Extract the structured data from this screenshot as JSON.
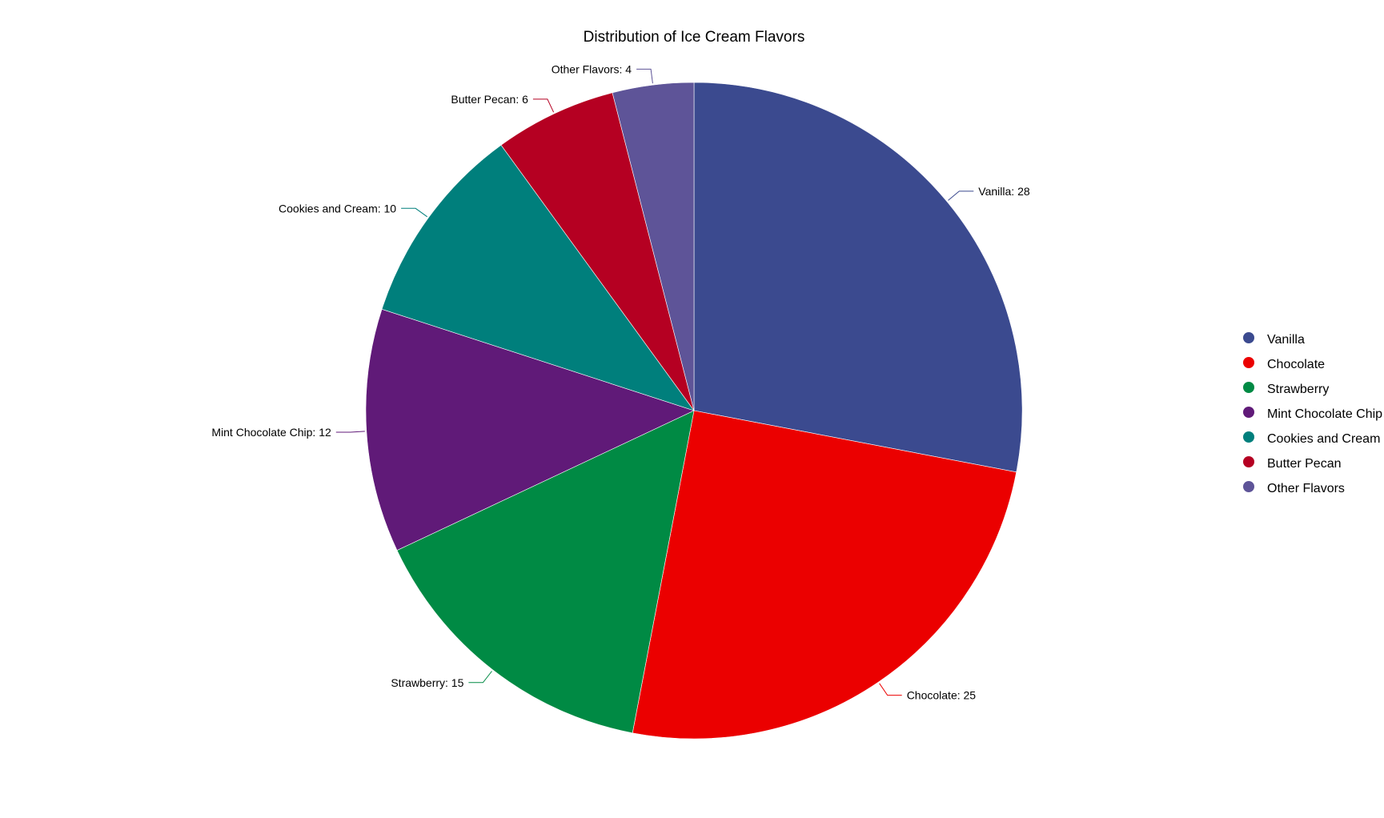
{
  "chart_data": {
    "type": "pie",
    "title": "Distribution of Ice Cream Flavors",
    "categories": [
      "Vanilla",
      "Chocolate",
      "Strawberry",
      "Mint Chocolate Chip",
      "Cookies and Cream",
      "Butter Pecan",
      "Other Flavors"
    ],
    "values": [
      28,
      25,
      15,
      12,
      10,
      6,
      4
    ],
    "labels": [
      "Vanilla: 28",
      "Chocolate: 25",
      "Strawberry: 15",
      "Mint Chocolate Chip: 12",
      "Cookies and Cream: 10",
      "Butter Pecan: 6",
      "Other Flavors: 4"
    ],
    "colors": [
      "#3b4a8f",
      "#eb0000",
      "#008a44",
      "#601a78",
      "#007f7c",
      "#b50022",
      "#5e5498"
    ],
    "start_angle": "top",
    "direction": "clockwise",
    "legend": {
      "position": "right",
      "entries": [
        "Vanilla",
        "Chocolate",
        "Strawberry",
        "Mint Chocolate Chip",
        "Cookies and Cream",
        "Butter Pecan",
        "Other Flavors"
      ]
    }
  }
}
